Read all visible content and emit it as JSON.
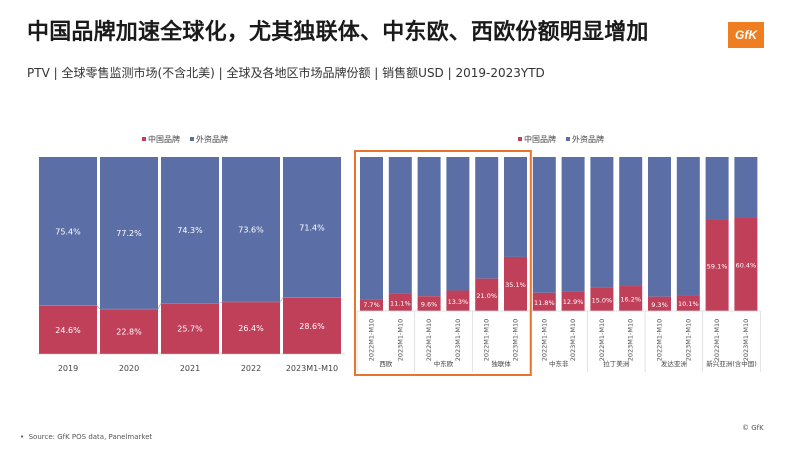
{
  "title": "中国品牌加速全球化，尤其独联体、中东欧、西欧份额明显增加",
  "subtitle": "PTV | 全球零售监测市场(不含北美) | 全球及各地区市场品牌份额 | 销售额USD | 2019-2023YTD",
  "logo_text": "GfK",
  "source": "Source: GfK POS data, Panelmarket",
  "copyright": "© GfK",
  "colors": {
    "chinese": "#c0405a",
    "foreign": "#5b6fa6",
    "highlight": "#e9742b",
    "grid": "#d6d6d6"
  },
  "chart_data": [
    {
      "type": "bar",
      "stacked": true,
      "percent": true,
      "legend": [
        "中国品牌",
        "外资品牌"
      ],
      "legend_position": "top-right",
      "categories": [
        "2019",
        "2020",
        "2021",
        "2022",
        "2023M1-M10"
      ],
      "series": [
        {
          "name": "中国品牌",
          "values": [
            24.6,
            22.8,
            25.7,
            26.4,
            28.6
          ],
          "labels": [
            "24.6%",
            "22.8%",
            "25.7%",
            "26.4%",
            "28.6%"
          ]
        },
        {
          "name": "外资品牌",
          "values": [
            75.4,
            77.2,
            74.3,
            73.6,
            71.4
          ],
          "labels": [
            "75.4%",
            "77.2%",
            "74.3%",
            "73.6%",
            "71.4%"
          ]
        }
      ],
      "ylim": [
        0,
        100
      ]
    },
    {
      "type": "bar",
      "stacked": true,
      "percent": true,
      "legend": [
        "中国品牌",
        "外资品牌"
      ],
      "legend_position": "top-right",
      "categories": [
        "2022M1-M10",
        "2023M1-M10",
        "2022M1-M10",
        "2023M1-M10",
        "2022M1-M10",
        "2023M1-M10",
        "2022M1-M10",
        "2023M1-M10",
        "2022M1-M10",
        "2023M1-M10",
        "2022M1-M10",
        "2023M1-M10",
        "2022M1-M10",
        "2023M1-M10"
      ],
      "groups": [
        "西欧",
        "中东欧",
        "独联体",
        "中东非",
        "拉丁美洲",
        "发达亚洲",
        "新兴亚洲(含中国)"
      ],
      "highlighted_groups": [
        "西欧",
        "中东欧",
        "独联体"
      ],
      "series": [
        {
          "name": "中国品牌",
          "values": [
            7.7,
            11.1,
            9.6,
            13.3,
            21.0,
            35.1,
            11.8,
            12.9,
            15.0,
            16.2,
            9.3,
            10.1,
            59.1,
            60.4
          ],
          "labels": [
            "7.7%",
            "11.1%",
            "9.6%",
            "13.3%",
            "21.0%",
            "35.1%",
            "11.8%",
            "12.9%",
            "15.0%",
            "16.2%",
            "9.3%",
            "10.1%",
            "59.1%",
            "60.4%"
          ]
        },
        {
          "name": "外资品牌",
          "values": [
            92.3,
            88.9,
            90.4,
            86.7,
            79.0,
            64.9,
            88.2,
            87.1,
            85.0,
            83.8,
            90.7,
            89.9,
            40.9,
            39.6
          ]
        }
      ],
      "ylim": [
        0,
        100
      ]
    }
  ]
}
